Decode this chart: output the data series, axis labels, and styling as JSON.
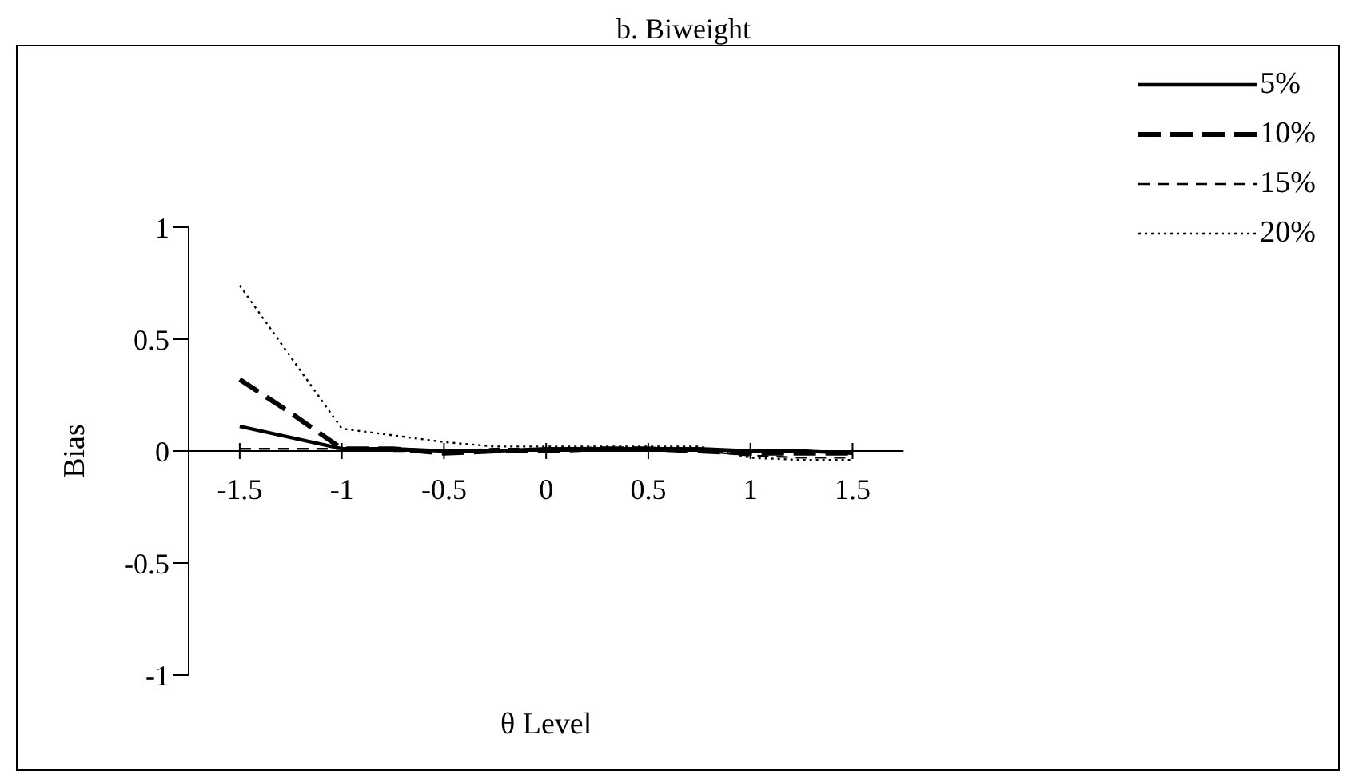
{
  "chart_data": {
    "type": "line",
    "title": "b. Biweight",
    "xlabel": "θ Level",
    "ylabel": "Bias",
    "x": [
      -1.5,
      -1.25,
      -1,
      -0.75,
      -0.5,
      -0.25,
      0,
      0.25,
      0.5,
      0.75,
      1,
      1.25,
      1.5
    ],
    "series": [
      {
        "name": "5%",
        "color": "#000000",
        "line_style": "solid",
        "values": [
          0.11,
          0.06,
          0.01,
          0.01,
          0,
          0,
          0.01,
          0.01,
          0.01,
          0.01,
          0,
          0,
          -0.01
        ]
      },
      {
        "name": "10%",
        "color": "#000000",
        "line_style": "dashed",
        "values": [
          0.32,
          0.17,
          0.01,
          0.01,
          -0.01,
          0,
          0,
          0.01,
          0.01,
          0,
          -0.01,
          -0.01,
          -0.01
        ]
      },
      {
        "name": "15%",
        "color": "#000000",
        "line_style": "dashed",
        "values": [
          0.01,
          0.01,
          0.01,
          0,
          0,
          0.01,
          0.01,
          0.01,
          0.01,
          0,
          -0.02,
          -0.03,
          -0.03
        ]
      },
      {
        "name": "20%",
        "color": "#000000",
        "line_style": "dotted",
        "values": [
          0.74,
          0.42,
          0.1,
          0.07,
          0.04,
          0.02,
          0.02,
          0.02,
          0.02,
          0.02,
          -0.03,
          -0.04,
          -0.04
        ]
      }
    ],
    "xlim": [
      -1.75,
      1.75
    ],
    "xticks": [
      -1.5,
      -1,
      -0.5,
      0,
      0.5,
      1,
      1.5
    ],
    "ylim": [
      -1,
      1
    ],
    "yticks": [
      -1,
      -0.5,
      0,
      0.5,
      1
    ],
    "grid": false,
    "legend": "top right",
    "marker": "none"
  }
}
